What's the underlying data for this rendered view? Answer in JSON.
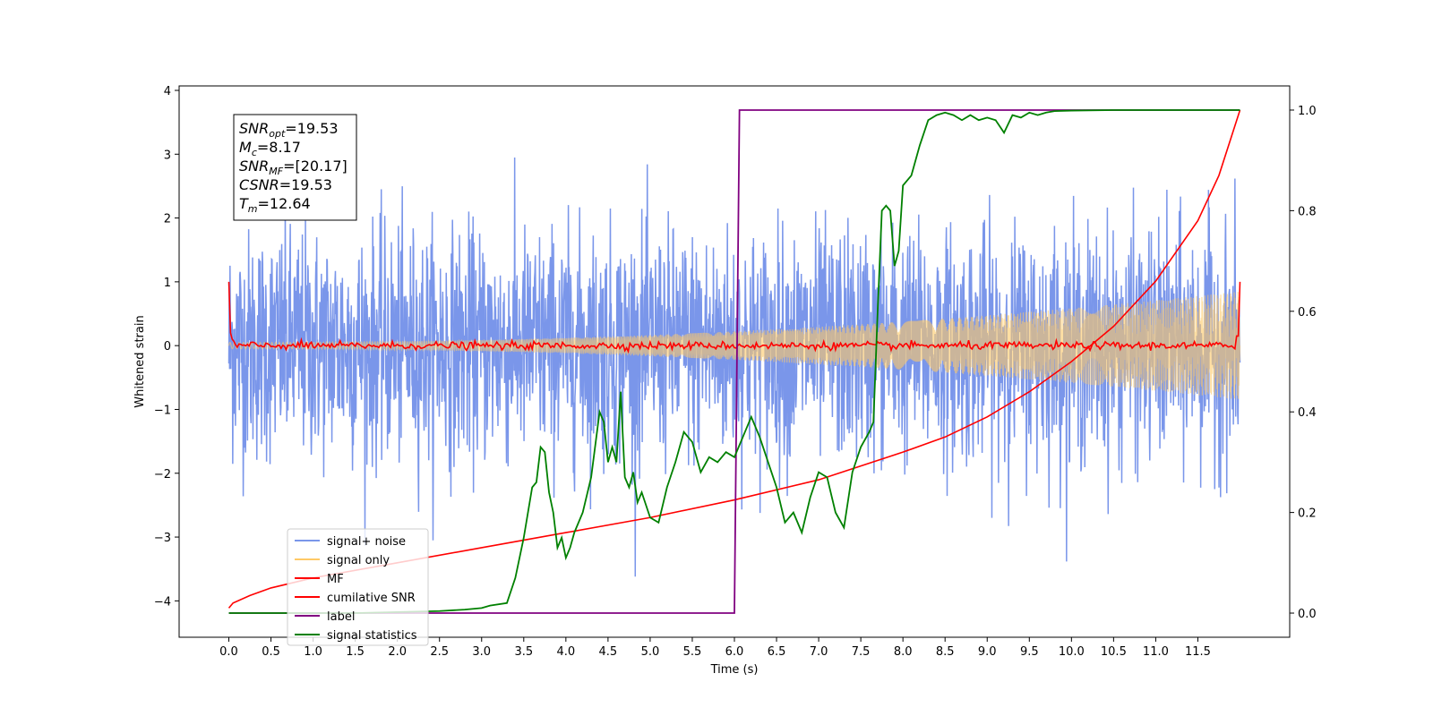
{
  "chart_data": {
    "type": "line",
    "xlabel": "Time (s)",
    "ylabel": "Whitened strain",
    "x_ticks": [
      "0.0",
      "0.5",
      "1.0",
      "1.5",
      "2.0",
      "2.5",
      "3.0",
      "3.5",
      "4.0",
      "4.5",
      "5.0",
      "5.5",
      "6.0",
      "6.5",
      "7.0",
      "7.5",
      "8.0",
      "8.5",
      "9.0",
      "9.5",
      "10.0",
      "10.5",
      "11.0",
      "11.5"
    ],
    "xlim": [
      -0.59,
      12.59
    ],
    "y_left_ticks": [
      "−4",
      "−3",
      "−2",
      "−1",
      "0",
      "1",
      "2",
      "3",
      "4"
    ],
    "ylim_left": [
      -4.57,
      4.07
    ],
    "y_right_ticks": [
      "0.0",
      "0.2",
      "0.4",
      "0.6",
      "0.8",
      "1.0"
    ],
    "ylim_right": [
      -0.048,
      1.048
    ],
    "grid": false,
    "legend": "lower-left",
    "colors": {
      "signal_noise": "#4169e1",
      "signal_only": "#ffc966",
      "mf": "#ff0000",
      "cumulative_snr": "#ff0000",
      "label": "#800080",
      "signal_statistics": "#008000"
    },
    "info_box": {
      "snr_opt": {
        "symbol": "SNR",
        "sub": "opt",
        "value": "=19.53"
      },
      "mc": {
        "symbol": "M",
        "sub": "c",
        "value": "=8.17"
      },
      "snr_mf": {
        "symbol": "SNR",
        "sub": "MF",
        "value": "=[20.17]"
      },
      "csnr": {
        "symbol": "CSNR",
        "sub": "",
        "value": "=19.53"
      },
      "tm": {
        "symbol": "T",
        "sub": "m",
        "value": "=12.64"
      }
    },
    "series": [
      {
        "name": "signal+ noise",
        "axis": "left",
        "description_only": false,
        "x_range": [
          0.0,
          12.0
        ],
        "noise_std": 0.9,
        "spike_max": 3.65
      },
      {
        "name": "signal only",
        "axis": "left",
        "x_range": [
          0.0,
          12.0
        ],
        "amplitude_start": 0.05,
        "amplitude_end": 0.85
      },
      {
        "name": "MF",
        "axis": "left",
        "x_range": [
          0.0,
          12.0
        ],
        "start_value": 1.0,
        "end_value": 1.0,
        "baseline": 0.0
      },
      {
        "name": "cumilative SNR",
        "axis": "right",
        "x": [
          0.0,
          0.05,
          0.25,
          0.5,
          1.0,
          2.0,
          3.0,
          4.0,
          5.0,
          6.0,
          7.0,
          8.0,
          8.5,
          9.0,
          9.5,
          10.0,
          10.5,
          11.0,
          11.5,
          11.75,
          12.0
        ],
        "y": [
          0.01,
          0.02,
          0.035,
          0.05,
          0.07,
          0.1,
          0.13,
          0.16,
          0.19,
          0.225,
          0.265,
          0.32,
          0.35,
          0.39,
          0.44,
          0.5,
          0.57,
          0.66,
          0.78,
          0.87,
          1.0
        ]
      },
      {
        "name": "label",
        "axis": "right",
        "x": [
          0.0,
          6.0,
          6.06,
          12.0
        ],
        "y": [
          0.0,
          0.0,
          1.0,
          1.0
        ]
      },
      {
        "name": "signal statistics",
        "axis": "right",
        "x": [
          0.0,
          0.5,
          1.0,
          1.5,
          2.0,
          2.5,
          2.8,
          3.0,
          3.1,
          3.3,
          3.4,
          3.5,
          3.6,
          3.65,
          3.7,
          3.75,
          3.8,
          3.85,
          3.9,
          3.95,
          4.0,
          4.05,
          4.1,
          4.2,
          4.3,
          4.4,
          4.45,
          4.5,
          4.55,
          4.6,
          4.65,
          4.7,
          4.75,
          4.8,
          4.85,
          4.9,
          5.0,
          5.1,
          5.2,
          5.3,
          5.4,
          5.5,
          5.6,
          5.7,
          5.8,
          5.9,
          6.0,
          6.1,
          6.2,
          6.3,
          6.4,
          6.5,
          6.6,
          6.7,
          6.8,
          6.9,
          7.0,
          7.1,
          7.2,
          7.3,
          7.4,
          7.5,
          7.6,
          7.65,
          7.7,
          7.75,
          7.8,
          7.85,
          7.9,
          7.95,
          8.0,
          8.1,
          8.2,
          8.3,
          8.4,
          8.5,
          8.6,
          8.7,
          8.8,
          8.9,
          9.0,
          9.1,
          9.2,
          9.3,
          9.4,
          9.5,
          9.6,
          9.7,
          9.8,
          10.0,
          10.5,
          11.0,
          11.5,
          12.0
        ],
        "y": [
          0.0,
          0.0,
          0.0,
          0.0,
          0.002,
          0.004,
          0.007,
          0.01,
          0.015,
          0.02,
          0.07,
          0.15,
          0.25,
          0.26,
          0.33,
          0.32,
          0.24,
          0.2,
          0.13,
          0.15,
          0.11,
          0.13,
          0.16,
          0.2,
          0.27,
          0.4,
          0.38,
          0.3,
          0.33,
          0.3,
          0.44,
          0.27,
          0.25,
          0.28,
          0.22,
          0.24,
          0.19,
          0.18,
          0.25,
          0.3,
          0.36,
          0.34,
          0.28,
          0.31,
          0.3,
          0.32,
          0.31,
          0.35,
          0.39,
          0.35,
          0.3,
          0.25,
          0.18,
          0.2,
          0.16,
          0.23,
          0.28,
          0.27,
          0.2,
          0.17,
          0.28,
          0.33,
          0.36,
          0.38,
          0.6,
          0.8,
          0.81,
          0.8,
          0.69,
          0.72,
          0.85,
          0.87,
          0.93,
          0.98,
          0.99,
          0.995,
          0.99,
          0.98,
          0.99,
          0.98,
          0.985,
          0.98,
          0.955,
          0.99,
          0.985,
          0.995,
          0.99,
          0.995,
          0.998,
          0.999,
          1.0,
          1.0,
          1.0,
          1.0
        ]
      }
    ]
  }
}
